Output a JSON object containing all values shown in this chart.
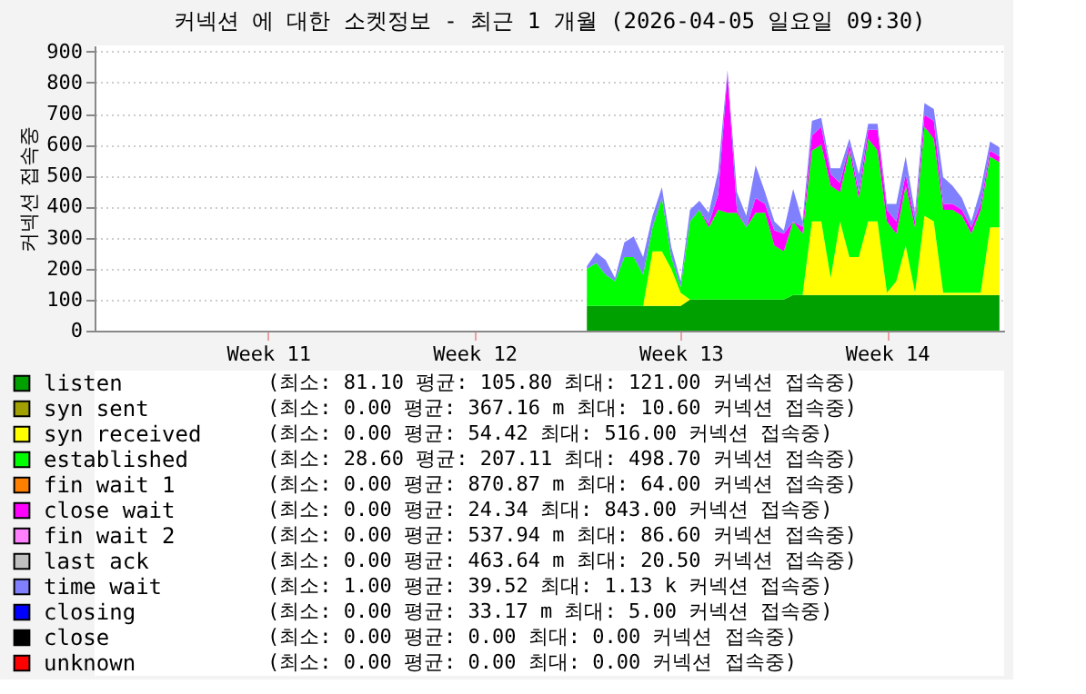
{
  "chart_data": {
    "type": "area",
    "stacked": true,
    "title": "커넥션 에 대한 소켓정보 - 최근 1 개월 (2026-04-05 일요일 09:30)",
    "ylabel": "커넥션 접속중",
    "categories": [
      null,
      null,
      null,
      null,
      null,
      null,
      null,
      null,
      null,
      null,
      null,
      null,
      null,
      null,
      null,
      null,
      null,
      null,
      "Week 11",
      null,
      null,
      null,
      null,
      null,
      null,
      null,
      null,
      null,
      null,
      null,
      null,
      null,
      null,
      null,
      null,
      null,
      null,
      null,
      null,
      null,
      "Week 12",
      null,
      null,
      null,
      null,
      null,
      null,
      null,
      null,
      null,
      null,
      null,
      null,
      null,
      null,
      null,
      null,
      null,
      null,
      null,
      null,
      null,
      "Week 13",
      null,
      null,
      null,
      null,
      null,
      null,
      null,
      null,
      null,
      null,
      null,
      null,
      null,
      null,
      null,
      null,
      null,
      null,
      null,
      null,
      null,
      "Week 14",
      null,
      null,
      null,
      null,
      null,
      null,
      null,
      null,
      null,
      null,
      null,
      null
    ],
    "ylim": [
      0,
      920
    ],
    "yticks": [
      0,
      100,
      200,
      300,
      400,
      500,
      600,
      700,
      800,
      900
    ],
    "grid": "y",
    "legend": "bottom",
    "series": [
      {
        "name": "listen",
        "color": "#00a000",
        "values": [
          null,
          null,
          null,
          null,
          null,
          null,
          null,
          null,
          null,
          null,
          null,
          null,
          null,
          null,
          null,
          null,
          null,
          null,
          null,
          null,
          null,
          null,
          null,
          null,
          null,
          null,
          null,
          null,
          null,
          null,
          null,
          null,
          null,
          null,
          null,
          null,
          null,
          null,
          null,
          null,
          null,
          null,
          null,
          null,
          null,
          null,
          null,
          null,
          null,
          null,
          null,
          null,
          80,
          80,
          80,
          80,
          80,
          80,
          80,
          80,
          80,
          80,
          80,
          100,
          100,
          100,
          100,
          100,
          100,
          100,
          100,
          100,
          100,
          100,
          115,
          115,
          115,
          115,
          115,
          115,
          115,
          115,
          115,
          115,
          115,
          115,
          115,
          115,
          115,
          115,
          115,
          115,
          115,
          115,
          115,
          115,
          115
        ]
      },
      {
        "name": "syn sent",
        "color": "#a0a000",
        "values": [
          null,
          null,
          null,
          null,
          null,
          null,
          null,
          null,
          null,
          null,
          null,
          null,
          null,
          null,
          null,
          null,
          null,
          null,
          null,
          null,
          null,
          null,
          null,
          null,
          null,
          null,
          null,
          null,
          null,
          null,
          null,
          null,
          null,
          null,
          null,
          null,
          null,
          null,
          null,
          null,
          null,
          null,
          null,
          null,
          null,
          null,
          null,
          null,
          null,
          null,
          null,
          null,
          null,
          null,
          null,
          null,
          null,
          null,
          null,
          null,
          null,
          null,
          null,
          null,
          null,
          null,
          null,
          null,
          null,
          null,
          null,
          null,
          null,
          null,
          null,
          null,
          null,
          null,
          null,
          null,
          null,
          null,
          null,
          null,
          null,
          null,
          null,
          null,
          null,
          null,
          null,
          null,
          null,
          null,
          null,
          null,
          null
        ]
      },
      {
        "name": "syn received",
        "color": "#ffff00",
        "values": [
          null,
          null,
          null,
          null,
          null,
          null,
          null,
          null,
          null,
          null,
          null,
          null,
          null,
          null,
          null,
          null,
          null,
          null,
          null,
          null,
          null,
          null,
          null,
          null,
          null,
          null,
          null,
          null,
          null,
          null,
          null,
          null,
          null,
          null,
          null,
          null,
          null,
          null,
          null,
          null,
          null,
          null,
          null,
          null,
          null,
          null,
          null,
          null,
          null,
          null,
          null,
          null,
          0,
          0,
          0,
          0,
          0,
          0,
          0,
          176,
          176,
          119,
          42,
          0,
          0,
          0,
          0,
          0,
          0,
          0,
          0,
          0,
          0,
          0,
          0,
          0,
          237,
          237,
          55,
          237,
          122,
          122,
          237,
          237,
          7,
          45,
          160,
          7,
          256,
          237,
          7,
          7,
          7,
          7,
          7,
          218,
          218
        ]
      },
      {
        "name": "established",
        "color": "#00ff00",
        "values": [
          null,
          null,
          null,
          null,
          null,
          null,
          null,
          null,
          null,
          null,
          null,
          null,
          null,
          null,
          null,
          null,
          null,
          null,
          null,
          null,
          null,
          null,
          null,
          null,
          null,
          null,
          null,
          null,
          null,
          null,
          null,
          null,
          null,
          null,
          null,
          null,
          null,
          null,
          null,
          null,
          null,
          null,
          null,
          null,
          null,
          null,
          null,
          null,
          null,
          null,
          null,
          null,
          119,
          138,
          100,
          80,
          157,
          157,
          100,
          77,
          172,
          38,
          19,
          252,
          290,
          233,
          290,
          280,
          280,
          233,
          280,
          280,
          175,
          156,
          237,
          198,
          229,
          248,
          297,
          95,
          344,
          191,
          267,
          229,
          230,
          153,
          192,
          211,
          287,
          267,
          268,
          268,
          249,
          191,
          268,
          229,
          210
        ]
      },
      {
        "name": "fin wait 1",
        "color": "#ff8000",
        "values": [
          null,
          null,
          null,
          null,
          null,
          null,
          null,
          null,
          null,
          null,
          null,
          null,
          null,
          null,
          null,
          null,
          null,
          null,
          null,
          null,
          null,
          null,
          null,
          null,
          null,
          null,
          null,
          null,
          null,
          null,
          null,
          null,
          null,
          null,
          null,
          null,
          null,
          null,
          null,
          null,
          null,
          null,
          null,
          null,
          null,
          null,
          null,
          null,
          null,
          null,
          null,
          null,
          null,
          null,
          null,
          null,
          null,
          null,
          null,
          null,
          null,
          null,
          null,
          null,
          null,
          null,
          null,
          null,
          null,
          null,
          null,
          null,
          null,
          null,
          null,
          null,
          null,
          null,
          null,
          null,
          null,
          null,
          null,
          null,
          null,
          null,
          null,
          null,
          null,
          null,
          null,
          null,
          null,
          null,
          null,
          null,
          null
        ]
      },
      {
        "name": "close wait",
        "color": "#ff00ff",
        "values": [
          null,
          null,
          null,
          null,
          null,
          null,
          null,
          null,
          null,
          null,
          null,
          null,
          null,
          null,
          null,
          null,
          null,
          null,
          null,
          null,
          null,
          null,
          null,
          null,
          null,
          null,
          null,
          null,
          null,
          null,
          null,
          null,
          null,
          null,
          null,
          null,
          null,
          null,
          null,
          null,
          null,
          null,
          null,
          null,
          null,
          null,
          null,
          null,
          null,
          null,
          null,
          null,
          0,
          0,
          0,
          0,
          0,
          0,
          0,
          0,
          0,
          0,
          0,
          0,
          0,
          12,
          48,
          450,
          10,
          0,
          48,
          29,
          48,
          57,
          0,
          22,
          48,
          58,
          38,
          29,
          19,
          19,
          29,
          67,
          38,
          39,
          38,
          19,
          38,
          58,
          19,
          19,
          19,
          20,
          19,
          19,
          19
        ]
      },
      {
        "name": "fin wait 2",
        "color": "#ff80ff",
        "values": [
          null,
          null,
          null,
          null,
          null,
          null,
          null,
          null,
          null,
          null,
          null,
          null,
          null,
          null,
          null,
          null,
          null,
          null,
          null,
          null,
          null,
          null,
          null,
          null,
          null,
          null,
          null,
          null,
          null,
          null,
          null,
          null,
          null,
          null,
          null,
          null,
          null,
          null,
          null,
          null,
          null,
          null,
          null,
          null,
          null,
          null,
          null,
          null,
          null,
          null,
          null,
          null,
          null,
          null,
          null,
          null,
          null,
          null,
          null,
          null,
          null,
          null,
          null,
          null,
          null,
          null,
          null,
          null,
          null,
          null,
          null,
          null,
          null,
          null,
          null,
          null,
          null,
          null,
          null,
          null,
          null,
          null,
          null,
          null,
          null,
          null,
          null,
          null,
          null,
          null,
          null,
          null,
          null,
          null,
          null,
          null,
          null
        ]
      },
      {
        "name": "last ack",
        "color": "#c0c0c0",
        "values": [
          null,
          null,
          null,
          null,
          null,
          null,
          null,
          null,
          null,
          null,
          null,
          null,
          null,
          null,
          null,
          null,
          null,
          null,
          null,
          null,
          null,
          null,
          null,
          null,
          null,
          null,
          null,
          null,
          null,
          null,
          null,
          null,
          null,
          null,
          null,
          null,
          null,
          null,
          null,
          null,
          null,
          null,
          null,
          null,
          null,
          null,
          null,
          null,
          null,
          null,
          null,
          null,
          null,
          null,
          null,
          null,
          null,
          null,
          null,
          null,
          null,
          null,
          null,
          null,
          null,
          null,
          null,
          null,
          null,
          null,
          null,
          null,
          null,
          null,
          null,
          null,
          null,
          null,
          null,
          null,
          null,
          null,
          null,
          null,
          null,
          null,
          null,
          null,
          null,
          null,
          null,
          null,
          null,
          null,
          null,
          null,
          null
        ]
      },
      {
        "name": "time wait",
        "color": "#8080ff",
        "values": [
          null,
          null,
          null,
          null,
          null,
          null,
          null,
          null,
          null,
          null,
          null,
          null,
          null,
          null,
          null,
          null,
          null,
          null,
          null,
          null,
          null,
          null,
          null,
          null,
          null,
          null,
          null,
          null,
          null,
          null,
          null,
          null,
          null,
          null,
          null,
          null,
          null,
          null,
          null,
          null,
          null,
          null,
          null,
          null,
          null,
          null,
          null,
          null,
          null,
          null,
          null,
          null,
          9,
          34,
          48,
          10,
          48,
          67,
          57,
          38,
          35,
          33,
          19,
          38,
          29,
          35,
          76,
          10,
          57,
          38,
          105,
          38,
          29,
          10,
          105,
          17,
          48,
          28,
          19,
          48,
          20,
          58,
          19,
          19,
          19,
          57,
          57,
          28,
          38,
          38,
          86,
          58,
          38,
          19,
          48,
          29,
          29
        ]
      },
      {
        "name": "closing",
        "color": "#0000ff",
        "values": [
          null,
          null,
          null,
          null,
          null,
          null,
          null,
          null,
          null,
          null,
          null,
          null,
          null,
          null,
          null,
          null,
          null,
          null,
          null,
          null,
          null,
          null,
          null,
          null,
          null,
          null,
          null,
          null,
          null,
          null,
          null,
          null,
          null,
          null,
          null,
          null,
          null,
          null,
          null,
          null,
          null,
          null,
          null,
          null,
          null,
          null,
          null,
          null,
          null,
          null,
          null,
          null,
          null,
          null,
          null,
          null,
          null,
          null,
          null,
          null,
          null,
          null,
          null,
          null,
          null,
          null,
          null,
          null,
          null,
          null,
          null,
          null,
          null,
          null,
          null,
          null,
          null,
          null,
          null,
          null,
          null,
          null,
          null,
          null,
          null,
          null,
          null,
          null,
          null,
          null,
          null,
          null,
          null,
          null,
          null,
          null,
          null
        ]
      },
      {
        "name": "close",
        "color": "#000000",
        "values": [
          null,
          null,
          null,
          null,
          null,
          null,
          null,
          null,
          null,
          null,
          null,
          null,
          null,
          null,
          null,
          null,
          null,
          null,
          null,
          null,
          null,
          null,
          null,
          null,
          null,
          null,
          null,
          null,
          null,
          null,
          null,
          null,
          null,
          null,
          null,
          null,
          null,
          null,
          null,
          null,
          null,
          null,
          null,
          null,
          null,
          null,
          null,
          null,
          null,
          null,
          null,
          null,
          null,
          null,
          null,
          null,
          null,
          null,
          null,
          null,
          null,
          null,
          null,
          null,
          null,
          null,
          null,
          null,
          null,
          null,
          null,
          null,
          null,
          null,
          null,
          null,
          null,
          null,
          null,
          null,
          null,
          null,
          null,
          null,
          null,
          null,
          null,
          null,
          null,
          null,
          null,
          null,
          null,
          null,
          null,
          null,
          null
        ]
      },
      {
        "name": "unknown",
        "color": "#ff0000",
        "values": [
          null,
          null,
          null,
          null,
          null,
          null,
          null,
          null,
          null,
          null,
          null,
          null,
          null,
          null,
          null,
          null,
          null,
          null,
          null,
          null,
          null,
          null,
          null,
          null,
          null,
          null,
          null,
          null,
          null,
          null,
          null,
          null,
          null,
          null,
          null,
          null,
          null,
          null,
          null,
          null,
          null,
          null,
          null,
          null,
          null,
          null,
          null,
          null,
          null,
          null,
          null,
          null,
          null,
          null,
          null,
          null,
          null,
          null,
          null,
          null,
          null,
          null,
          null,
          null,
          null,
          null,
          null,
          null,
          null,
          null,
          null,
          null,
          null,
          null,
          null,
          null,
          null,
          null,
          null,
          null,
          null,
          null,
          null,
          null,
          null,
          null,
          null,
          null,
          null,
          null,
          null,
          null,
          null,
          null,
          null,
          null,
          null
        ]
      }
    ],
    "annotations": [
      "(최소:  81.10  평균: 105.80   최대: 121.00  커넥션 접속중)",
      "(최소:   0.00  평균: 367.16 m  최대:  10.60  커넥션 접속중)",
      "(최소:   0.00  평균:  54.42   최대: 516.00  커넥션 접속중)",
      "(최소:  28.60  평균: 207.11   최대: 498.70  커넥션 접속중)",
      "(최소:   0.00  평균: 870.87 m  최대:  64.00  커넥션 접속중)",
      "(최소:   0.00  평균:  24.34   최대: 843.00  커넥션 접속중)",
      "(최소:   0.00  평균: 537.94 m  최대:  86.60  커넥션 접속중)",
      "(최소:   0.00  평균: 463.64 m  최대:  20.50  커넥션 접속중)",
      "(최소:   1.00  평균:  39.52   최대:   1.13 k 커넥션 접속중)",
      "(최소:   0.00  평균:  33.17 m  최대:   5.00  커넥션 접속중)",
      "(최소:   0.00  평균:   0.00   최대:   0.00  커넥션 접속중)",
      "(최소:   0.00  평균:   0.00   최대:   0.00  커넥션 접속중)"
    ]
  }
}
